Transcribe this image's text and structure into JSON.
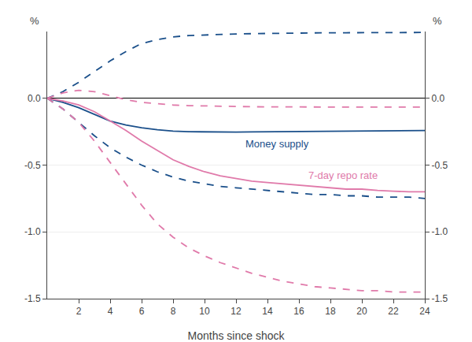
{
  "chart_data": {
    "type": "line",
    "xlabel": "Months since shock",
    "ylabel": "%",
    "y2label": "%",
    "x": [
      0,
      1,
      2,
      3,
      4,
      5,
      6,
      7,
      8,
      9,
      10,
      11,
      12,
      13,
      14,
      15,
      16,
      17,
      18,
      19,
      20,
      21,
      22,
      23,
      24
    ],
    "series": [
      {
        "color": "#1a4f8a",
        "line_style": "solid",
        "values": [
          0.0,
          -0.03,
          -0.07,
          -0.12,
          -0.17,
          -0.2,
          -0.22,
          -0.235,
          -0.245,
          -0.25,
          -0.252,
          -0.253,
          -0.253,
          -0.252,
          -0.251,
          -0.25,
          -0.249,
          -0.248,
          -0.247,
          -0.246,
          -0.245,
          -0.244,
          -0.243,
          -0.242,
          -0.241
        ]
      },
      {
        "color": "#1a4f8a",
        "line_style": "dashed",
        "values": [
          0.0,
          0.05,
          0.12,
          0.2,
          0.28,
          0.35,
          0.41,
          0.44,
          0.46,
          0.47,
          0.475,
          0.48,
          0.482,
          0.484,
          0.486,
          0.488,
          0.489,
          0.49,
          0.491,
          0.491,
          0.492,
          0.492,
          0.493,
          0.493,
          0.493
        ]
      },
      {
        "color": "#1a4f8a",
        "line_style": "dashed",
        "values": [
          0.0,
          -0.08,
          -0.18,
          -0.28,
          -0.37,
          -0.44,
          -0.5,
          -0.55,
          -0.59,
          -0.62,
          -0.64,
          -0.66,
          -0.67,
          -0.68,
          -0.69,
          -0.7,
          -0.71,
          -0.72,
          -0.72,
          -0.73,
          -0.73,
          -0.74,
          -0.74,
          -0.74,
          -0.75
        ]
      },
      {
        "color": "#e07aaa",
        "line_style": "solid",
        "values": [
          0.0,
          -0.02,
          -0.05,
          -0.1,
          -0.17,
          -0.24,
          -0.32,
          -0.39,
          -0.46,
          -0.51,
          -0.55,
          -0.58,
          -0.6,
          -0.62,
          -0.63,
          -0.64,
          -0.65,
          -0.66,
          -0.67,
          -0.68,
          -0.68,
          -0.69,
          -0.695,
          -0.7,
          -0.7
        ]
      },
      {
        "color": "#e07aaa",
        "line_style": "dashed",
        "values": [
          0.0,
          0.04,
          0.06,
          0.05,
          0.02,
          -0.01,
          -0.03,
          -0.04,
          -0.05,
          -0.055,
          -0.058,
          -0.06,
          -0.062,
          -0.063,
          -0.064,
          -0.065,
          -0.065,
          -0.066,
          -0.066,
          -0.066,
          -0.066,
          -0.066,
          -0.066,
          -0.066,
          -0.066
        ]
      },
      {
        "color": "#e07aaa",
        "line_style": "dashed",
        "values": [
          0.0,
          -0.08,
          -0.18,
          -0.32,
          -0.48,
          -0.64,
          -0.8,
          -0.94,
          -1.04,
          -1.12,
          -1.18,
          -1.23,
          -1.27,
          -1.31,
          -1.34,
          -1.37,
          -1.39,
          -1.41,
          -1.42,
          -1.43,
          -1.44,
          -1.44,
          -1.45,
          -1.45,
          -1.45
        ]
      }
    ],
    "xlim": [
      0,
      24
    ],
    "xticks": [
      2,
      4,
      6,
      8,
      10,
      12,
      14,
      16,
      18,
      20,
      22,
      24
    ],
    "ylim": [
      -1.5,
      0.5
    ],
    "yticks": [
      -1.5,
      {
        "value": -1.0,
        "label": "-1.0"
      },
      {
        "value": -0.5,
        "label": "-0.5"
      },
      {
        "value": 0.0,
        "label": "0.0"
      }
    ],
    "y2lim": [
      -1.5,
      0.5
    ],
    "y2ticks": [
      -1.5,
      {
        "value": -1.0,
        "label": "-1.0"
      },
      {
        "value": -0.5,
        "label": "-0.5"
      },
      {
        "value": 0.0,
        "label": "0.0"
      }
    ],
    "grid": true,
    "annotations": [
      {
        "text": "Money supply",
        "x": 12.5,
        "y": -0.285,
        "color": "#1a4f8a"
      },
      {
        "text": "7-day repo rate",
        "x": 16.5,
        "y": -0.52,
        "color": "#e07aaa"
      }
    ]
  }
}
